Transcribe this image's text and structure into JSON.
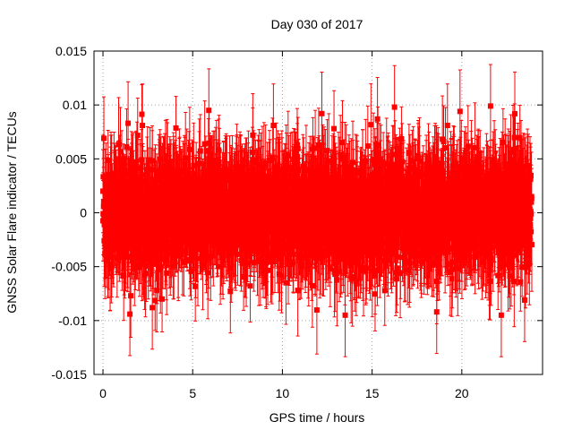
{
  "chart_data": {
    "type": "scatter",
    "title": "Day 030 of 2017",
    "xlabel": "GPS time / hours",
    "ylabel": "GNSS Solar Flare indicator / TECUs",
    "xlim": [
      -0.5,
      24.5
    ],
    "ylim": [
      -0.015,
      0.015
    ],
    "x_ticks": [
      0,
      5,
      10,
      15,
      20
    ],
    "x_tick_labels": [
      "0",
      "5",
      "10",
      "15",
      "20"
    ],
    "y_ticks": [
      -0.015,
      -0.01,
      -0.005,
      0,
      0.005,
      0.01,
      0.015
    ],
    "y_tick_labels": [
      "-0.015",
      "-0.01",
      "-0.005",
      "0",
      "0.005",
      "0.01",
      "0.015"
    ],
    "grid": true,
    "series": [
      {
        "name": "solar flare indicator",
        "color": "#ff0000",
        "marker": "square",
        "error_bars": true,
        "x_start": 0.0,
        "x_end": 23.9,
        "point_count": 2880,
        "noise_sigma": 0.0024,
        "typical_error": 0.0035,
        "value_range": [
          -0.0118,
          0.0122
        ],
        "highlight_points": [
          {
            "x": 0.0,
            "y": 0.002
          },
          {
            "x": 0.05,
            "y": 0.0069
          },
          {
            "x": 0.4,
            "y": -0.0052
          },
          {
            "x": 1.4,
            "y": 0.0083
          },
          {
            "x": 1.5,
            "y": -0.0094
          },
          {
            "x": 1.55,
            "y": -0.0077
          },
          {
            "x": 2.2,
            "y": 0.0081
          },
          {
            "x": 2.75,
            "y": -0.0088
          },
          {
            "x": 3.0,
            "y": -0.0072
          },
          {
            "x": 3.55,
            "y": -0.0056
          },
          {
            "x": 5.9,
            "y": 0.0095
          },
          {
            "x": 7.1,
            "y": -0.0073
          },
          {
            "x": 8.35,
            "y": 0.0072
          },
          {
            "x": 9.5,
            "y": 0.0081
          },
          {
            "x": 10.2,
            "y": -0.0065
          },
          {
            "x": 12.2,
            "y": 0.0092
          },
          {
            "x": 13.5,
            "y": -0.0095
          },
          {
            "x": 15.3,
            "y": 0.0087
          },
          {
            "x": 16.25,
            "y": 0.0098
          },
          {
            "x": 18.6,
            "y": -0.0092
          },
          {
            "x": 19.2,
            "y": 0.0081
          },
          {
            "x": 19.9,
            "y": 0.0094
          },
          {
            "x": 21.6,
            "y": 0.0099
          },
          {
            "x": 22.2,
            "y": -0.0095
          },
          {
            "x": 23.5,
            "y": -0.0081
          }
        ]
      }
    ]
  }
}
